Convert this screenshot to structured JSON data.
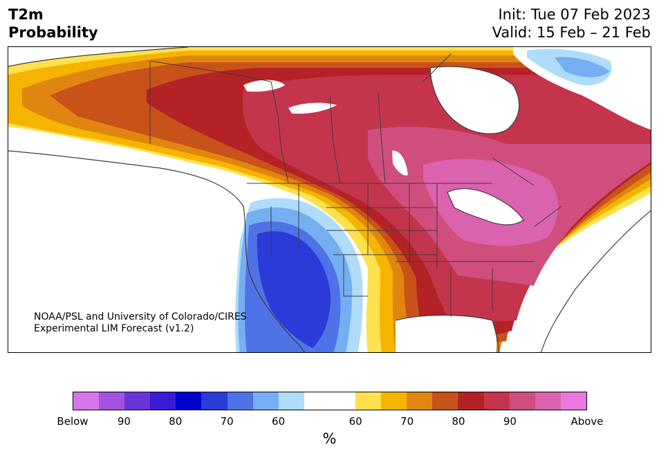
{
  "header": {
    "title_line1": "T2m",
    "title_line2": "Probability",
    "init": "Init: Tue 07 Feb 2023",
    "valid": "Valid: 15 Feb – 21 Feb"
  },
  "credit": {
    "line1": "NOAA/PSL and University of Colorado/CIRES",
    "line2": "Experimental LIM Forecast (v1.2)"
  },
  "colorbar": {
    "unit": "%",
    "below_label": "Below",
    "above_label": "Above",
    "below_ticks": [
      "90",
      "80",
      "70",
      "60"
    ],
    "above_ticks": [
      "60",
      "70",
      "80",
      "90"
    ],
    "below_colors": [
      "#d575ea",
      "#a452e0",
      "#6a35d8",
      "#3a1cd6",
      "#0000cc",
      "#2a3bd8",
      "#4f72e6",
      "#76aef2",
      "#aedcfa"
    ],
    "neutral_color": "#ffffff",
    "above_colors": [
      "#fee14e",
      "#f4b400",
      "#e08610",
      "#c8521a",
      "#b42226",
      "#c4344c",
      "#d04e7e",
      "#da62ae",
      "#e878de"
    ]
  },
  "map": {
    "region": "North America",
    "background_color": "#ffffff",
    "border_color": "#3c3c3c"
  }
}
